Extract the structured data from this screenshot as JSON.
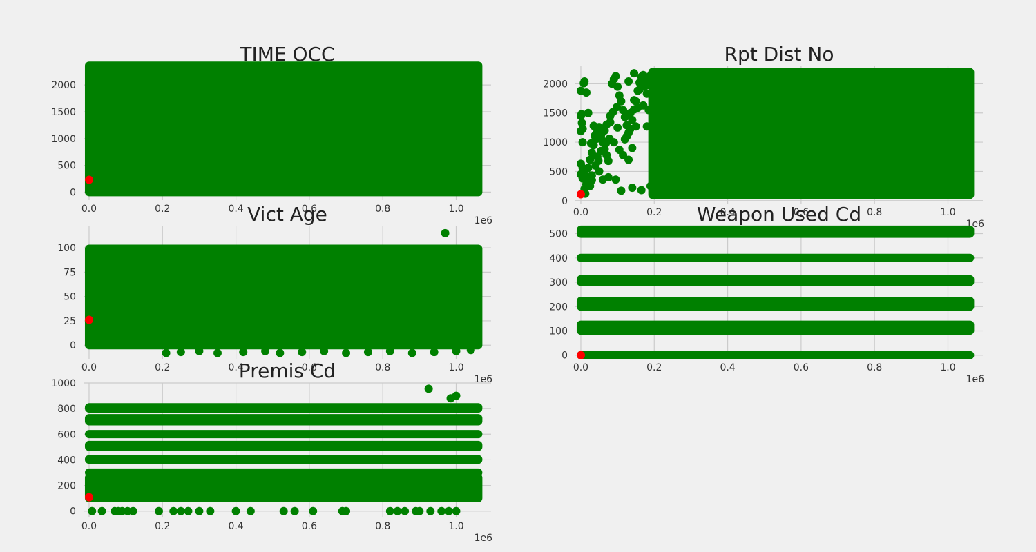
{
  "colors": {
    "background": "#f0f0f0",
    "grid": "#cbcbcb",
    "points": "#008000",
    "highlight": "#ff0000",
    "text": "#333333"
  },
  "chart_data": [
    {
      "type": "scatter",
      "title": "TIME OCC",
      "x_offset_label": "1e6",
      "xlim": [
        -15000,
        1095000
      ],
      "ylim": [
        -150,
        2350
      ],
      "xticks": [
        0.0,
        0.2,
        0.4,
        0.6,
        0.8,
        1.0
      ],
      "xtick_labels": [
        "0.0",
        "0.2",
        "0.4",
        "0.6",
        "0.8",
        "1.0"
      ],
      "yticks": [
        0,
        500,
        1000,
        1500,
        2000
      ],
      "ytick_labels": [
        "0",
        "500",
        "1000",
        "1500",
        "2000"
      ],
      "dense_regions": [
        {
          "x": [
            0,
            1060000
          ],
          "y": [
            0,
            2359
          ]
        }
      ],
      "points": [],
      "highlight_point": {
        "x": 0,
        "y": 230
      },
      "grid": true
    },
    {
      "type": "scatter",
      "title": "Rpt Dist No",
      "x_offset_label": "1e6",
      "xlim": [
        -15000,
        1095000
      ],
      "ylim": [
        -50,
        2300
      ],
      "xticks": [
        0.0,
        0.2,
        0.4,
        0.6,
        0.8,
        1.0
      ],
      "xtick_labels": [
        "0.0",
        "0.2",
        "0.4",
        "0.6",
        "0.8",
        "1.0"
      ],
      "yticks": [
        0,
        500,
        1000,
        1500,
        2000
      ],
      "ytick_labels": [
        "0",
        "500",
        "1000",
        "1500",
        "2000"
      ],
      "dense_regions": [
        {
          "x": [
            195000,
            1060000
          ],
          "y": [
            100,
            2199
          ]
        }
      ],
      "points": [
        [
          0,
          1880
        ],
        [
          2000,
          1480
        ],
        [
          3000,
          1330
        ],
        [
          5000,
          1230
        ],
        [
          0,
          1190
        ],
        [
          8000,
          2010
        ],
        [
          10000,
          2040
        ],
        [
          15000,
          1850
        ],
        [
          0,
          630
        ],
        [
          5000,
          560
        ],
        [
          10000,
          450
        ],
        [
          15000,
          360
        ],
        [
          20000,
          300
        ],
        [
          25000,
          250
        ],
        [
          30000,
          430
        ],
        [
          30000,
          820
        ],
        [
          35000,
          950
        ],
        [
          40000,
          1050
        ],
        [
          45000,
          1180
        ],
        [
          50000,
          1260
        ],
        [
          55000,
          1120
        ],
        [
          60000,
          1000
        ],
        [
          65000,
          880
        ],
        [
          70000,
          780
        ],
        [
          75000,
          680
        ],
        [
          80000,
          1340
        ],
        [
          85000,
          2000
        ],
        [
          90000,
          2080
        ],
        [
          95000,
          2130
        ],
        [
          100000,
          1950
        ],
        [
          105000,
          1800
        ],
        [
          110000,
          1700
        ],
        [
          115000,
          1550
        ],
        [
          120000,
          1430
        ],
        [
          125000,
          1290
        ],
        [
          130000,
          1160
        ],
        [
          135000,
          1230
        ],
        [
          140000,
          1380
        ],
        [
          145000,
          1560
        ],
        [
          150000,
          1700
        ],
        [
          155000,
          1880
        ],
        [
          160000,
          2020
        ],
        [
          165000,
          2120
        ],
        [
          170000,
          2150
        ],
        [
          175000,
          1960
        ],
        [
          180000,
          1830
        ],
        [
          60000,
          360
        ],
        [
          75000,
          400
        ],
        [
          95000,
          360
        ],
        [
          110000,
          170
        ],
        [
          140000,
          220
        ],
        [
          165000,
          180
        ],
        [
          190000,
          250
        ],
        [
          130000,
          700
        ],
        [
          140000,
          900
        ],
        [
          120000,
          1050
        ],
        [
          100000,
          1250
        ],
        [
          25000,
          700
        ],
        [
          40000,
          600
        ],
        [
          50000,
          500
        ],
        [
          35000,
          1280
        ],
        [
          45000,
          1250
        ],
        [
          155000,
          1590
        ],
        [
          160000,
          1900
        ],
        [
          145000,
          2180
        ],
        [
          130000,
          2040
        ],
        [
          150000,
          1270
        ],
        [
          170000,
          1630
        ],
        [
          180000,
          1270
        ],
        [
          185000,
          1550
        ],
        [
          0,
          1450
        ],
        [
          20000,
          1500
        ],
        [
          10000,
          200
        ],
        [
          15000,
          280
        ],
        [
          5000,
          380
        ],
        [
          0,
          450
        ],
        [
          30000,
          350
        ],
        [
          45000,
          750
        ],
        [
          55000,
          850
        ],
        [
          65000,
          1200
        ],
        [
          70000,
          1300
        ],
        [
          80000,
          1450
        ],
        [
          90000,
          1000
        ],
        [
          105000,
          870
        ],
        [
          115000,
          780
        ],
        [
          125000,
          1100
        ],
        [
          135000,
          1500
        ],
        [
          145000,
          1720
        ],
        [
          175000,
          2070
        ],
        [
          185000,
          1980
        ],
        [
          190000,
          2140
        ],
        [
          5000,
          1000
        ],
        [
          12000,
          120
        ],
        [
          20000,
          560
        ],
        [
          28000,
          980
        ],
        [
          38000,
          1110
        ],
        [
          48000,
          680
        ],
        [
          58000,
          1030
        ],
        [
          68000,
          980
        ],
        [
          78000,
          1060
        ],
        [
          88000,
          1520
        ],
        [
          98000,
          1600
        ]
      ],
      "highlight_point": {
        "x": 0,
        "y": 110
      },
      "grid": true
    },
    {
      "type": "scatter",
      "title": "Vict Age",
      "x_offset_label": "1e6",
      "xlim": [
        -15000,
        1095000
      ],
      "ylim": [
        -14,
        122
      ],
      "xticks": [
        0.0,
        0.2,
        0.4,
        0.6,
        0.8,
        1.0
      ],
      "xtick_labels": [
        "0.0",
        "0.2",
        "0.4",
        "0.6",
        "0.8",
        "1.0"
      ],
      "yticks": [
        0,
        25,
        50,
        75,
        100
      ],
      "ytick_labels": [
        "0",
        "25",
        "50",
        "75",
        "100"
      ],
      "dense_regions": [
        {
          "x": [
            0,
            1060000
          ],
          "y": [
            0,
            99
          ]
        }
      ],
      "points": [
        [
          970000,
          115
        ],
        [
          210000,
          -8
        ],
        [
          250000,
          -7
        ],
        [
          300000,
          -6
        ],
        [
          350000,
          -8
        ],
        [
          420000,
          -7
        ],
        [
          480000,
          -6
        ],
        [
          520000,
          -8
        ],
        [
          580000,
          -7
        ],
        [
          640000,
          -6
        ],
        [
          700000,
          -8
        ],
        [
          760000,
          -7
        ],
        [
          820000,
          -6
        ],
        [
          880000,
          -8
        ],
        [
          940000,
          -7
        ],
        [
          1000000,
          -6
        ],
        [
          1040000,
          -5
        ]
      ],
      "highlight_point": {
        "x": 0,
        "y": 26
      },
      "grid": true
    },
    {
      "type": "scatter",
      "title": "Weapon Used Cd",
      "x_offset_label": "1e6",
      "xlim": [
        -15000,
        1095000
      ],
      "ylim": [
        -15,
        530
      ],
      "xticks": [
        0.0,
        0.2,
        0.4,
        0.6,
        0.8,
        1.0
      ],
      "xtick_labels": [
        "0.0",
        "0.2",
        "0.4",
        "0.6",
        "0.8",
        "1.0"
      ],
      "yticks": [
        0,
        100,
        200,
        300,
        400,
        500
      ],
      "ytick_labels": [
        "0",
        "100",
        "200",
        "300",
        "400",
        "500"
      ],
      "dense_regions": [
        {
          "x": [
            0,
            1060000
          ],
          "y": [
            0,
            0
          ]
        },
        {
          "x": [
            0,
            1060000
          ],
          "y": [
            101,
            125
          ]
        },
        {
          "x": [
            0,
            1060000
          ],
          "y": [
            200,
            223
          ]
        },
        {
          "x": [
            0,
            1060000
          ],
          "y": [
            301,
            312
          ]
        },
        {
          "x": [
            0,
            1060000
          ],
          "y": [
            400,
            400
          ]
        },
        {
          "x": [
            0,
            1060000
          ],
          "y": [
            500,
            516
          ]
        }
      ],
      "points": [],
      "highlight_point": {
        "x": 0,
        "y": 0
      },
      "grid": true
    },
    {
      "type": "scatter",
      "title": "Premis Cd",
      "x_offset_label": "1e6",
      "xlim": [
        -15000,
        1095000
      ],
      "ylim": [
        -50,
        1000
      ],
      "xticks": [
        0.0,
        0.2,
        0.4,
        0.6,
        0.8,
        1.0
      ],
      "xtick_labels": [
        "0.0",
        "0.2",
        "0.4",
        "0.6",
        "0.8",
        "1.0"
      ],
      "yticks": [
        0,
        200,
        400,
        600,
        800,
        1000
      ],
      "ytick_labels": [
        "0",
        "200",
        "400",
        "600",
        "800",
        "1000"
      ],
      "dense_regions": [
        {
          "x": [
            0,
            1060000
          ],
          "y": [
            101,
            260
          ]
        },
        {
          "x": [
            0,
            1060000
          ],
          "y": [
            301,
            301
          ]
        },
        {
          "x": [
            0,
            1060000
          ],
          "y": [
            401,
            405
          ]
        },
        {
          "x": [
            0,
            1060000
          ],
          "y": [
            501,
            516
          ]
        },
        {
          "x": [
            0,
            1060000
          ],
          "y": [
            601,
            601
          ]
        },
        {
          "x": [
            0,
            1060000
          ],
          "y": [
            701,
            725
          ]
        },
        {
          "x": [
            0,
            1060000
          ],
          "y": [
            801,
            810
          ]
        }
      ],
      "points": [
        [
          8000,
          0
        ],
        [
          35000,
          0
        ],
        [
          70000,
          0
        ],
        [
          80000,
          0
        ],
        [
          90000,
          0
        ],
        [
          105000,
          0
        ],
        [
          120000,
          0
        ],
        [
          190000,
          0
        ],
        [
          230000,
          0
        ],
        [
          250000,
          0
        ],
        [
          270000,
          0
        ],
        [
          300000,
          0
        ],
        [
          330000,
          0
        ],
        [
          400000,
          0
        ],
        [
          440000,
          0
        ],
        [
          530000,
          0
        ],
        [
          560000,
          0
        ],
        [
          610000,
          0
        ],
        [
          690000,
          0
        ],
        [
          700000,
          0
        ],
        [
          820000,
          0
        ],
        [
          840000,
          0
        ],
        [
          860000,
          0
        ],
        [
          890000,
          0
        ],
        [
          900000,
          0
        ],
        [
          930000,
          0
        ],
        [
          960000,
          0
        ],
        [
          980000,
          0
        ],
        [
          1000000,
          0
        ],
        [
          925000,
          955
        ],
        [
          985000,
          880
        ],
        [
          1000000,
          900
        ]
      ],
      "highlight_point": {
        "x": 0,
        "y": 108
      },
      "grid": true
    }
  ]
}
